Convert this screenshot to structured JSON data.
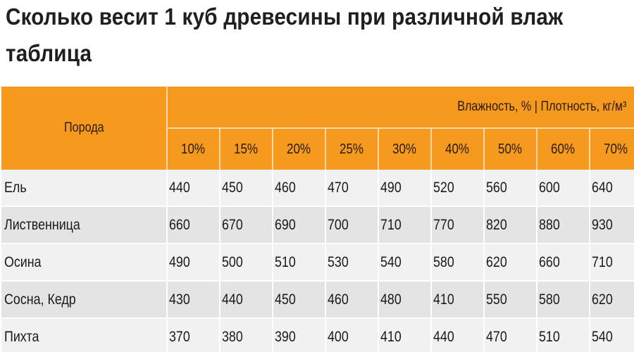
{
  "title": {
    "line1": "Сколько весит 1 куб древесины при различной влаж",
    "line2": "таблица"
  },
  "table": {
    "breed_header": "Порода",
    "group_header": "Влажность, % | Плотность, кг/м³",
    "columns": [
      "10%",
      "15%",
      "20%",
      "25%",
      "30%",
      "40%",
      "50%",
      "60%",
      "70%"
    ],
    "rows": [
      {
        "breed": "Ель",
        "values": [
          "440",
          "450",
          "460",
          "470",
          "490",
          "520",
          "560",
          "600",
          "640"
        ]
      },
      {
        "breed": "Лиственница",
        "values": [
          "660",
          "670",
          "690",
          "700",
          "710",
          "770",
          "820",
          "880",
          "930"
        ]
      },
      {
        "breed": "Осина",
        "values": [
          "490",
          "500",
          "510",
          "530",
          "540",
          "580",
          "620",
          "660",
          "710"
        ]
      },
      {
        "breed": "Сосна, Кедр",
        "values": [
          "430",
          "440",
          "450",
          "460",
          "480",
          "410",
          "550",
          "580",
          "620"
        ]
      },
      {
        "breed": "Пихта",
        "values": [
          "370",
          "380",
          "390",
          "400",
          "410",
          "440",
          "470",
          "510",
          "540"
        ]
      }
    ]
  },
  "colors": {
    "header_bg": "#f69a1f",
    "row_light": "#f1f1f1",
    "row_dark": "#e4e4e4"
  }
}
